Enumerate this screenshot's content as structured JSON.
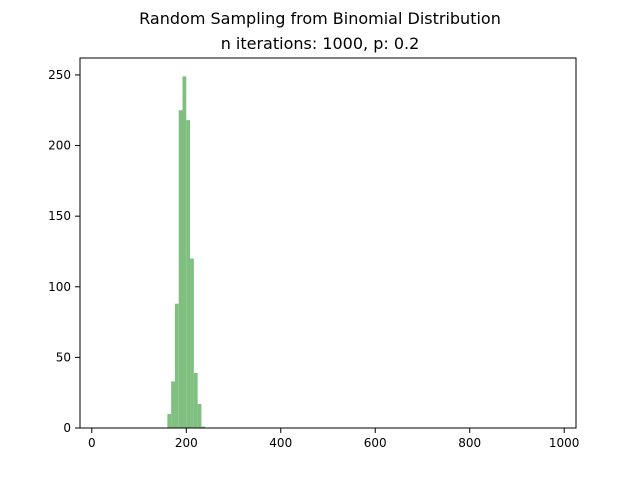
{
  "chart_data": {
    "type": "bar",
    "title": "Random Sampling from Binomial Distribution",
    "subtitle": "n iterations: 1000, p: 0.2",
    "xlabel": "",
    "ylabel": "",
    "xlim": [
      -25,
      1025
    ],
    "ylim": [
      0,
      262
    ],
    "x_ticks": [
      0,
      200,
      400,
      600,
      800,
      1000
    ],
    "y_ticks": [
      0,
      50,
      100,
      150,
      200,
      250
    ],
    "bin_width": 8,
    "bins": [
      {
        "x": 160,
        "value": 10
      },
      {
        "x": 168,
        "value": 33
      },
      {
        "x": 176,
        "value": 88
      },
      {
        "x": 184,
        "value": 225
      },
      {
        "x": 192,
        "value": 249
      },
      {
        "x": 200,
        "value": 218
      },
      {
        "x": 208,
        "value": 120
      },
      {
        "x": 216,
        "value": 39
      },
      {
        "x": 224,
        "value": 17
      },
      {
        "x": 232,
        "value": 1
      }
    ],
    "bar_color": "#7fbf7f",
    "grid": false,
    "legend": "none"
  }
}
